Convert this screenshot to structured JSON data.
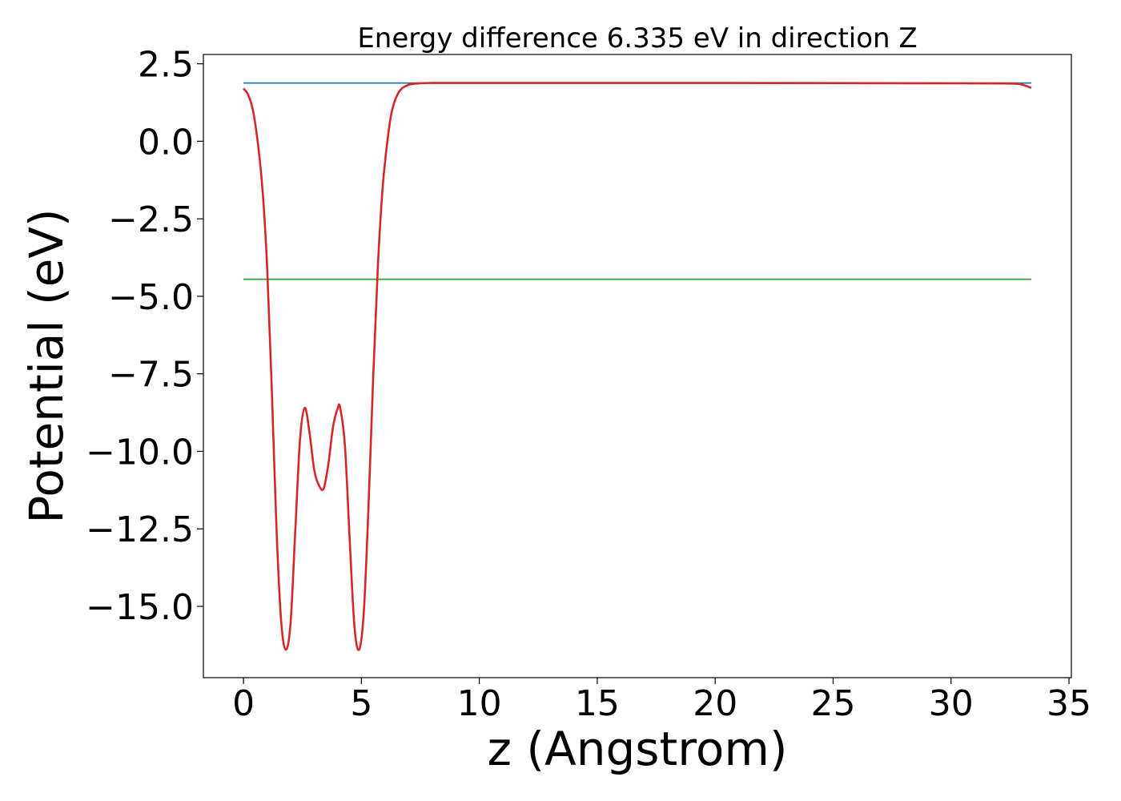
{
  "chart_data": {
    "type": "line",
    "title": "Energy difference 6.335 eV in direction Z",
    "xlabel": "z (Angstrom)",
    "ylabel": "Potential (eV)",
    "xlim": [
      -1.7,
      35.1
    ],
    "ylim": [
      -17.3,
      2.8
    ],
    "xticks": [
      0,
      5,
      10,
      15,
      20,
      25,
      30,
      35
    ],
    "yticks": [
      2.5,
      0.0,
      -2.5,
      -5.0,
      -7.5,
      -10.0,
      -12.5,
      -15.0
    ],
    "xtick_labels": [
      "0",
      "5",
      "10",
      "15",
      "20",
      "25",
      "30",
      "35"
    ],
    "ytick_labels": [
      "2.5",
      "0.0",
      "−2.5",
      "−5.0",
      "−7.5",
      "−10.0",
      "−12.5",
      "−15.0"
    ],
    "grid": false,
    "series": [
      {
        "color": "#1f77b4",
        "style": "hline",
        "x": [
          0,
          33.4
        ],
        "y": [
          1.88,
          1.88
        ]
      },
      {
        "color": "#2ca02c",
        "style": "hline",
        "x": [
          0,
          33.4
        ],
        "y": [
          -4.45,
          -4.45
        ]
      },
      {
        "color": "#d62728",
        "style": "curve",
        "x": [
          0.0,
          0.2,
          0.4,
          0.6,
          0.8,
          1.0,
          1.2,
          1.4,
          1.6,
          1.8,
          2.0,
          2.2,
          2.4,
          2.6,
          2.8,
          3.0,
          3.2,
          3.4,
          3.6,
          3.8,
          4.0,
          4.1,
          4.3,
          4.5,
          4.7,
          4.9,
          5.1,
          5.3,
          5.5,
          5.7,
          5.9,
          6.1,
          6.3,
          6.6,
          7.0,
          7.5,
          8.0,
          10.0,
          20.0,
          30.0,
          32.5,
          33.0,
          33.4
        ],
        "y": [
          1.7,
          1.5,
          1.0,
          0.0,
          -1.5,
          -4.0,
          -8.0,
          -12.5,
          -15.5,
          -16.4,
          -15.5,
          -12.5,
          -9.6,
          -8.6,
          -9.4,
          -10.6,
          -11.1,
          -11.2,
          -10.4,
          -9.2,
          -8.6,
          -8.6,
          -9.8,
          -12.8,
          -15.6,
          -16.4,
          -15.2,
          -11.8,
          -7.6,
          -4.0,
          -1.5,
          0.0,
          1.0,
          1.6,
          1.82,
          1.87,
          1.88,
          1.88,
          1.88,
          1.87,
          1.86,
          1.83,
          1.72
        ]
      }
    ]
  }
}
